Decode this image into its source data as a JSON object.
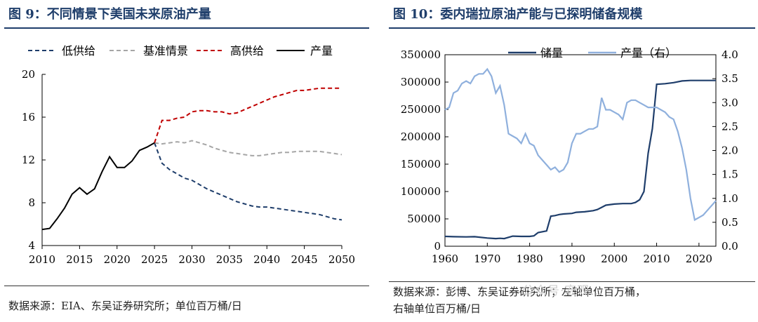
{
  "left": {
    "title": "图 9：不同情景下美国未来原油产量",
    "source": "数据来源：EIA、东吴证券研究所；单位百万桶/日"
  },
  "right": {
    "title": "图 10：委内瑞拉原油产能与已探明储备规模",
    "source_line1": "数据来源：彭博、东吴证券研究所；左轴单位百万桶，",
    "source_line2": "右轴单位百万桶/日",
    "watermark": "公众号·宏观..."
  },
  "chart_data": [
    {
      "type": "line",
      "title": "",
      "xlabel": "",
      "ylabel": "",
      "xlim": [
        2010,
        2050
      ],
      "ylim": [
        4,
        20
      ],
      "x_ticks": [
        "2010",
        "2015",
        "2020",
        "2025",
        "2030",
        "2035",
        "2040",
        "2045",
        "2050"
      ],
      "y_ticks": [
        "4",
        "8",
        "12",
        "16",
        "20"
      ],
      "legend": "top",
      "grid": false,
      "series": [
        {
          "name": "低供给",
          "color": "#1f3e6b",
          "dash": true,
          "x": [
            2025,
            2026,
            2027,
            2028,
            2029,
            2030,
            2031,
            2032,
            2033,
            2034,
            2035,
            2036,
            2037,
            2038,
            2039,
            2040,
            2041,
            2042,
            2043,
            2044,
            2045,
            2046,
            2047,
            2048,
            2049,
            2050
          ],
          "y": [
            13.6,
            11.7,
            11.1,
            10.7,
            10.3,
            10.1,
            9.7,
            9.3,
            9.0,
            8.7,
            8.4,
            8.1,
            7.9,
            7.7,
            7.6,
            7.6,
            7.5,
            7.4,
            7.3,
            7.2,
            7.1,
            7.0,
            6.9,
            6.7,
            6.5,
            6.4
          ]
        },
        {
          "name": "基准情景",
          "color": "#a6a6a6",
          "dash": true,
          "x": [
            2025,
            2026,
            2027,
            2028,
            2029,
            2030,
            2031,
            2032,
            2033,
            2034,
            2035,
            2036,
            2037,
            2038,
            2039,
            2040,
            2041,
            2042,
            2043,
            2044,
            2045,
            2046,
            2047,
            2048,
            2049,
            2050
          ],
          "y": [
            13.6,
            13.5,
            13.6,
            13.7,
            13.6,
            13.8,
            13.6,
            13.4,
            13.1,
            12.9,
            12.7,
            12.6,
            12.5,
            12.4,
            12.4,
            12.5,
            12.6,
            12.7,
            12.7,
            12.8,
            12.8,
            12.8,
            12.8,
            12.7,
            12.6,
            12.5
          ]
        },
        {
          "name": "高供给",
          "color": "#c00000",
          "dash": true,
          "x": [
            2025,
            2026,
            2027,
            2028,
            2029,
            2030,
            2031,
            2032,
            2033,
            2034,
            2035,
            2036,
            2037,
            2038,
            2039,
            2040,
            2041,
            2042,
            2043,
            2044,
            2045,
            2046,
            2047,
            2048,
            2049,
            2050
          ],
          "y": [
            13.6,
            15.7,
            15.7,
            15.9,
            16.0,
            16.5,
            16.6,
            16.6,
            16.5,
            16.5,
            16.3,
            16.4,
            16.7,
            17.0,
            17.3,
            17.6,
            17.9,
            18.1,
            18.3,
            18.5,
            18.5,
            18.6,
            18.7,
            18.7,
            18.7,
            18.7
          ]
        },
        {
          "name": "产量",
          "color": "#000000",
          "dash": false,
          "x": [
            2010,
            2011,
            2012,
            2013,
            2014,
            2015,
            2016,
            2017,
            2018,
            2019,
            2020,
            2021,
            2022,
            2023,
            2024,
            2025
          ],
          "y": [
            5.5,
            5.6,
            6.5,
            7.5,
            8.8,
            9.4,
            8.8,
            9.3,
            10.9,
            12.3,
            11.3,
            11.3,
            11.9,
            12.9,
            13.2,
            13.6
          ]
        }
      ]
    },
    {
      "type": "line",
      "title": "",
      "xlabel": "",
      "ylabel": "",
      "xlim": [
        1960,
        2024
      ],
      "ylim_left": [
        0,
        350000
      ],
      "ylim_right": [
        0,
        4.0
      ],
      "x_ticks": [
        "1960",
        "1970",
        "1980",
        "1990",
        "2000",
        "2010",
        "2020"
      ],
      "y_ticks_left": [
        "0",
        "50000",
        "100000",
        "150000",
        "200000",
        "250000",
        "300000",
        "350000"
      ],
      "y_ticks_right": [
        "0.0",
        "0.5",
        "1.0",
        "1.5",
        "2.0",
        "2.5",
        "3.0",
        "3.5",
        "4.0"
      ],
      "legend": "top",
      "grid": false,
      "series": [
        {
          "name": "储量",
          "axis": "left",
          "color": "#1f3e6b",
          "x": [
            1960,
            1962,
            1965,
            1967,
            1970,
            1972,
            1973,
            1974,
            1976,
            1978,
            1980,
            1981,
            1982,
            1984,
            1985,
            1986,
            1987,
            1988,
            1990,
            1991,
            1993,
            1995,
            1996,
            1997,
            1998,
            2000,
            2002,
            2004,
            2005,
            2006,
            2007,
            2008,
            2009,
            2010,
            2012,
            2014,
            2016,
            2018,
            2020,
            2022,
            2024
          ],
          "y": [
            18000,
            17500,
            17000,
            17500,
            15000,
            14000,
            14500,
            14000,
            18500,
            18000,
            18000,
            19000,
            25000,
            28000,
            55000,
            56000,
            58000,
            59000,
            60000,
            62000,
            63000,
            65000,
            67000,
            71000,
            75000,
            77000,
            78000,
            78000,
            80000,
            85000,
            100000,
            170000,
            215000,
            296000,
            297000,
            299000,
            302000,
            303000,
            303000,
            303000,
            303000
          ]
        },
        {
          "name": "产量（右）",
          "axis": "right",
          "color": "#8fb0dd",
          "x": [
            1960,
            1961,
            1962,
            1963,
            1964,
            1965,
            1966,
            1967,
            1968,
            1969,
            1970,
            1971,
            1972,
            1973,
            1974,
            1975,
            1976,
            1977,
            1978,
            1979,
            1980,
            1981,
            1982,
            1983,
            1984,
            1985,
            1986,
            1987,
            1988,
            1989,
            1990,
            1991,
            1992,
            1993,
            1994,
            1995,
            1996,
            1997,
            1998,
            1999,
            2000,
            2001,
            2002,
            2003,
            2004,
            2005,
            2006,
            2007,
            2008,
            2009,
            2010,
            2011,
            2012,
            2013,
            2014,
            2015,
            2016,
            2017,
            2018,
            2019,
            2020,
            2021,
            2022,
            2023,
            2024
          ],
          "y": [
            2.85,
            2.9,
            3.2,
            3.25,
            3.4,
            3.45,
            3.4,
            3.55,
            3.6,
            3.6,
            3.7,
            3.55,
            3.2,
            3.35,
            2.95,
            2.35,
            2.3,
            2.25,
            2.15,
            2.35,
            2.15,
            2.1,
            1.9,
            1.8,
            1.7,
            1.6,
            1.65,
            1.55,
            1.6,
            1.75,
            2.15,
            2.35,
            2.35,
            2.4,
            2.45,
            2.45,
            2.5,
            3.1,
            2.85,
            2.85,
            2.8,
            2.75,
            2.65,
            3.0,
            3.05,
            3.05,
            3.0,
            2.95,
            2.9,
            2.9,
            2.9,
            2.85,
            2.8,
            2.7,
            2.65,
            2.4,
            2.05,
            1.6,
            1.0,
            0.55,
            0.6,
            0.65,
            0.75,
            0.85,
            0.95
          ]
        }
      ]
    }
  ]
}
